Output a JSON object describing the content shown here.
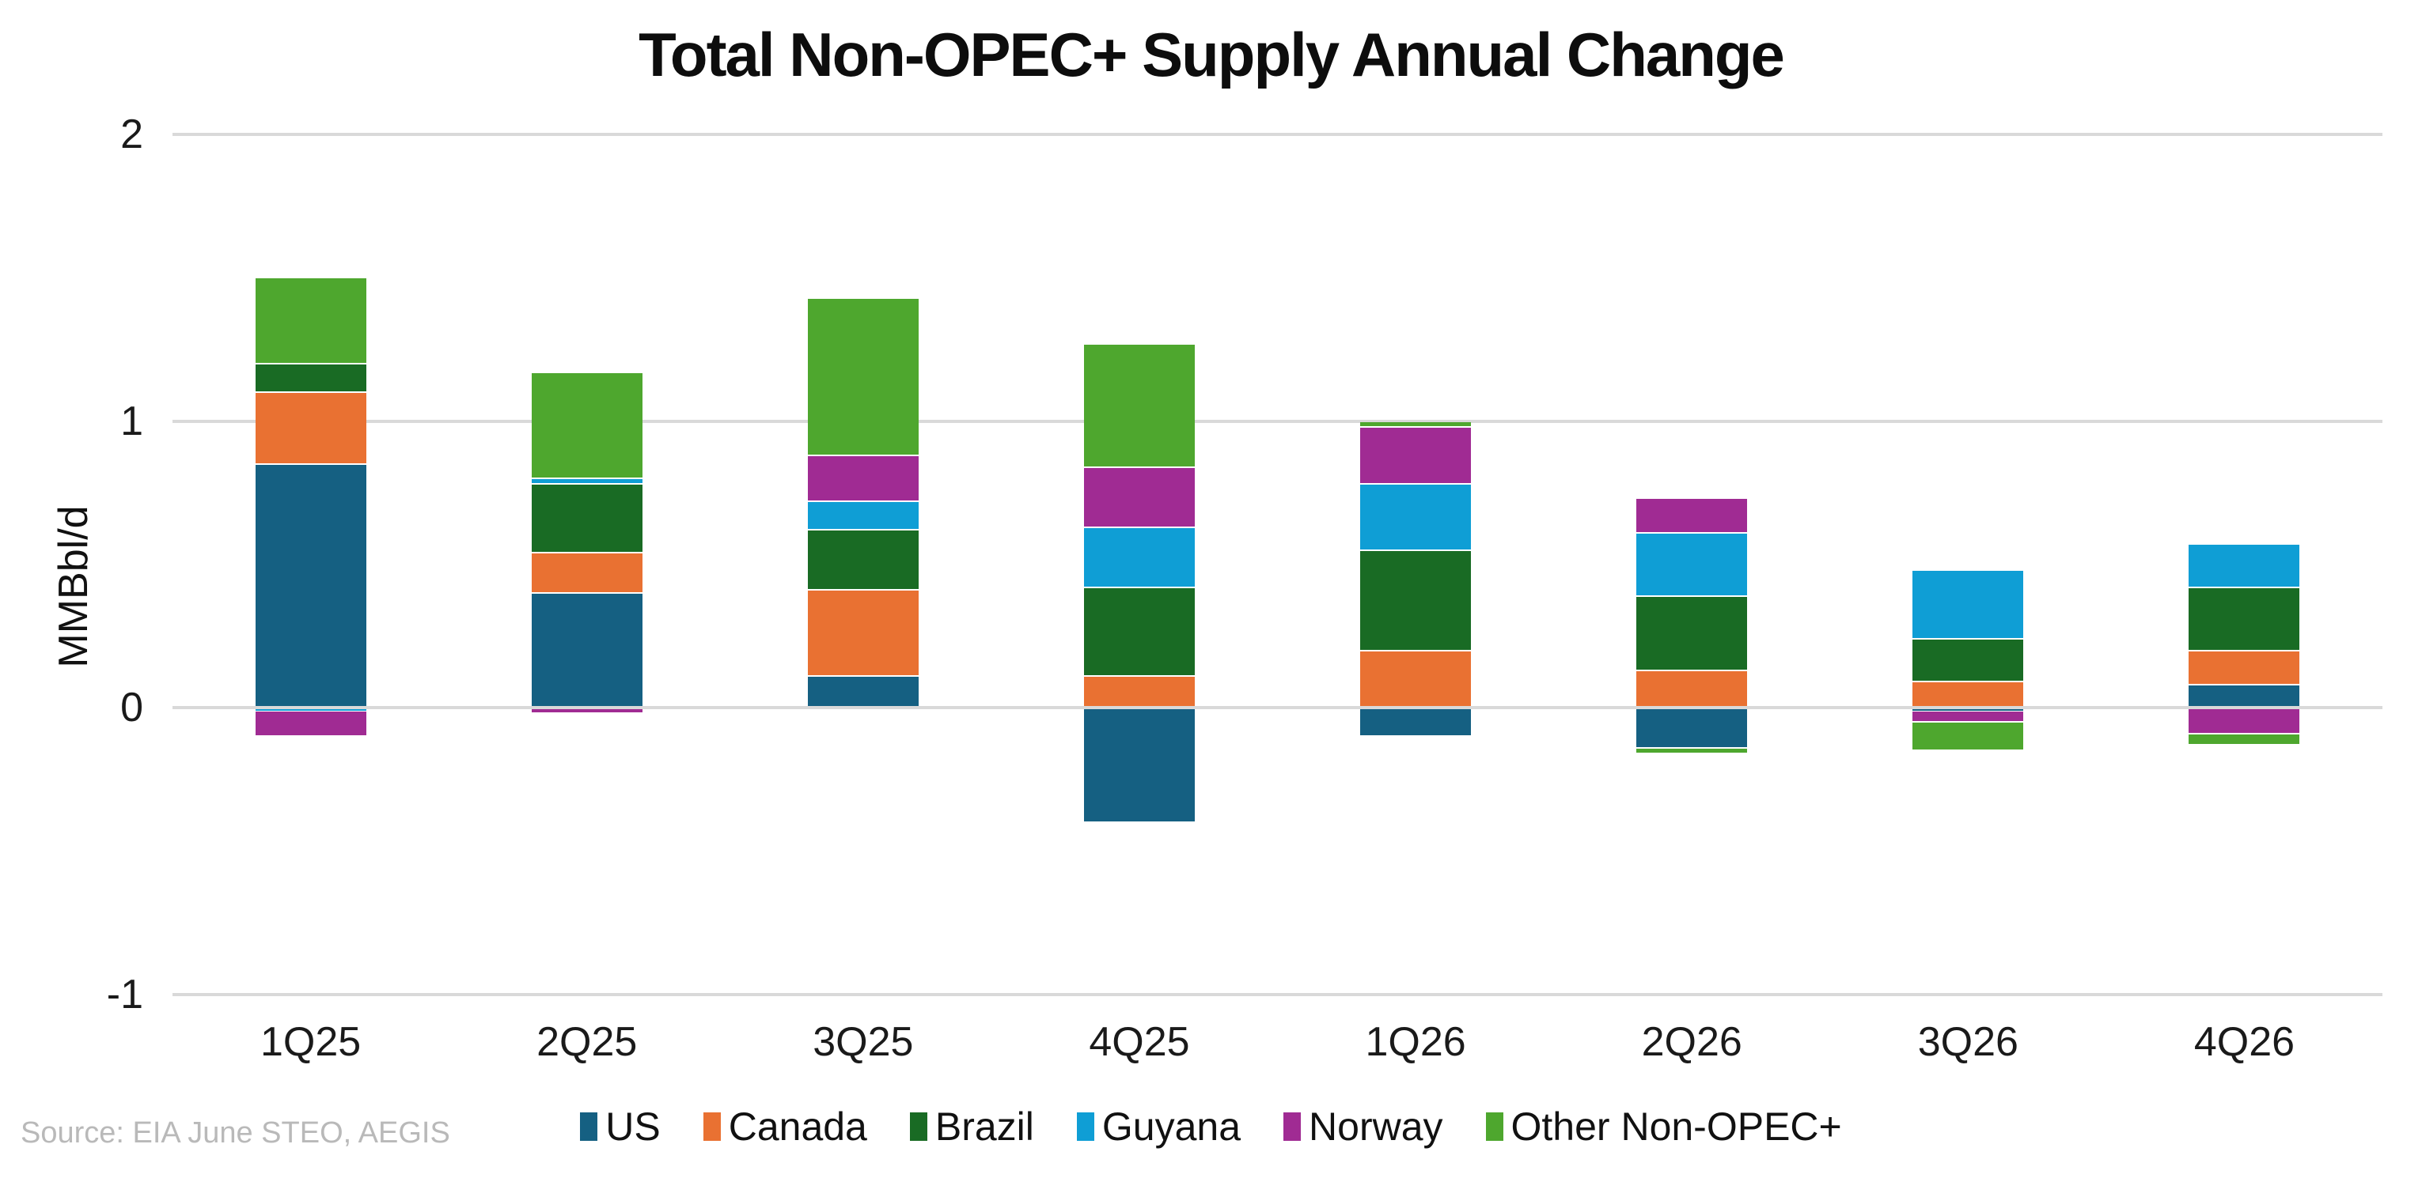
{
  "title": "Total Non-OPEC+ Supply Annual Change",
  "source": "Source: EIA June STEO, AEGIS",
  "chart_data": {
    "type": "bar",
    "stacked": true,
    "title": "Total Non-OPEC+ Supply Annual Change",
    "xlabel": "",
    "ylabel": "MMBbl/d",
    "ylim": [
      -1,
      2
    ],
    "grid": true,
    "legend_position": "bottom",
    "categories": [
      "1Q25",
      "2Q25",
      "3Q25",
      "4Q25",
      "1Q26",
      "2Q26",
      "3Q26",
      "4Q26"
    ],
    "yticks": [
      {
        "label": "2",
        "v": 2
      },
      {
        "label": "1",
        "v": 1
      },
      {
        "label": "0",
        "v": 0
      },
      {
        "label": "-1",
        "v": -1
      }
    ],
    "series": [
      {
        "name": "US",
        "color": "#156082",
        "values": [
          0.85,
          0.4,
          0.11,
          -0.4,
          -0.1,
          -0.14,
          -0.01,
          0.08
        ]
      },
      {
        "name": "Canada",
        "color": "#E97132",
        "values": [
          0.25,
          0.14,
          0.3,
          0.11,
          0.2,
          0.13,
          0.09,
          0.12
        ]
      },
      {
        "name": "Brazil",
        "color": "#196B24",
        "values": [
          0.1,
          0.24,
          0.21,
          0.31,
          0.35,
          0.26,
          0.15,
          0.22
        ]
      },
      {
        "name": "Guyana",
        "color": "#0F9ED5",
        "values": [
          -0.01,
          0.02,
          0.1,
          0.21,
          0.23,
          0.22,
          0.24,
          0.15
        ]
      },
      {
        "name": "Norway",
        "color": "#A02B93",
        "values": [
          -0.09,
          -0.02,
          0.16,
          0.21,
          0.2,
          0.12,
          -0.04,
          -0.09
        ]
      },
      {
        "name": "Other Non-OPEC+",
        "color": "#4EA72E",
        "values": [
          0.3,
          0.37,
          0.55,
          0.43,
          0.02,
          -0.02,
          -0.1,
          -0.04
        ]
      }
    ],
    "gridline_color": "#D9D9D9"
  }
}
